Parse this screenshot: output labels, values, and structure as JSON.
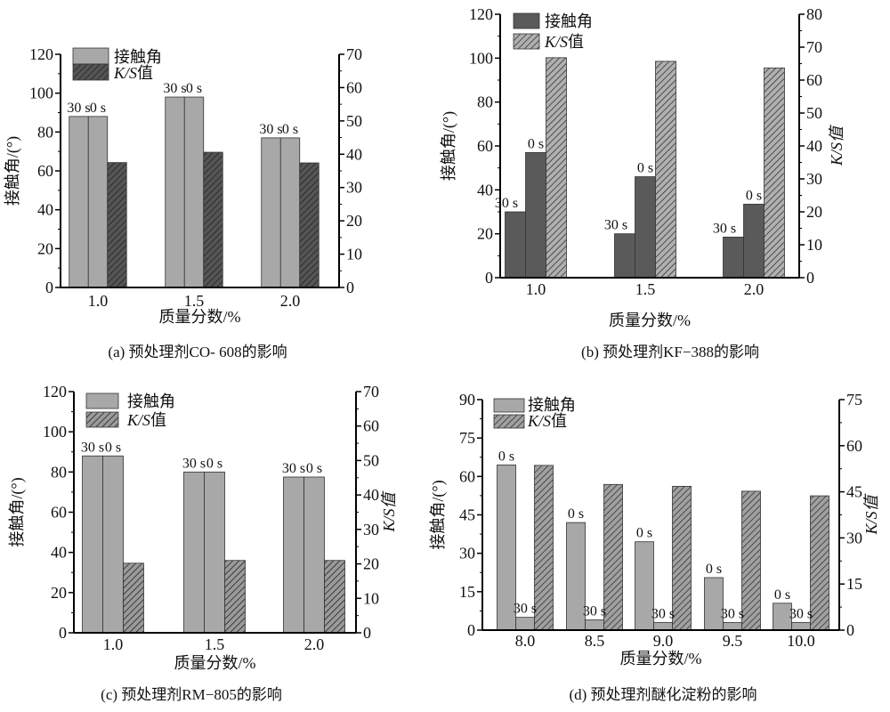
{
  "chart_data": [
    {
      "type": "bar",
      "caption": "(a) 预处理剂CO- 608的影响",
      "xlabel": "质量分数/%",
      "ylabel": "接触角/(°)",
      "ylim": [
        0,
        120
      ],
      "ystep": 20,
      "y2lim": [
        0,
        70
      ],
      "y2step": 10,
      "categories": [
        "1.0",
        "1.5",
        "2.0"
      ],
      "legend": [
        "接触角",
        "K/S值"
      ],
      "colors": {
        "contact": "#a8a8a8",
        "ks_fill": "#555555",
        "ks_hatch": "#222222"
      },
      "series": [
        {
          "name": "接触角",
          "bar_label": "30 s",
          "axis": "left",
          "values": [
            88,
            98,
            77
          ]
        },
        {
          "name": "接触角",
          "bar_label": "0 s",
          "axis": "left",
          "values": [
            88,
            98,
            77
          ]
        },
        {
          "name": "K/S值",
          "axis": "right",
          "values": [
            37.5,
            40.6,
            37.4
          ]
        }
      ]
    },
    {
      "type": "bar",
      "caption": "(b) 预处理剂KF−388的影响",
      "xlabel": "质量分数/%",
      "ylabel": "接触角/(°)",
      "y2label": "K/S值",
      "ylim": [
        0,
        120
      ],
      "ystep": 20,
      "y2lim": [
        0,
        80
      ],
      "y2step": 10,
      "categories": [
        "1.0",
        "1.5",
        "2.0"
      ],
      "legend": [
        "接触角",
        "K/S值"
      ],
      "colors": {
        "contact": "#5a5a5a",
        "ks_fill": "#b0b0b0",
        "ks_hatch": "#333333"
      },
      "series": [
        {
          "name": "接触角",
          "bar_label": "30 s",
          "axis": "left",
          "values": [
            30,
            20,
            18.5
          ]
        },
        {
          "name": "接触角",
          "bar_label": "0 s",
          "axis": "left",
          "values": [
            57,
            46,
            33.5
          ]
        },
        {
          "name": "K/S值",
          "axis": "right",
          "values": [
            66.8,
            65.7,
            63.7
          ]
        }
      ]
    },
    {
      "type": "bar",
      "caption": "(c) 预处理剂RM−805的影响",
      "xlabel": "质量分数/%",
      "ylabel": "接触角/(°)",
      "y2label": "K/S值",
      "ylim": [
        0,
        120
      ],
      "ystep": 20,
      "y2lim": [
        0,
        70
      ],
      "y2step": 10,
      "categories": [
        "1.0",
        "1.5",
        "2.0"
      ],
      "legend": [
        "接触角",
        "K/S值"
      ],
      "colors": {
        "contact": "#a8a8a8",
        "ks_fill": "#9a9a9a",
        "ks_hatch": "#222222"
      },
      "series": [
        {
          "name": "接触角",
          "bar_label": "30 s",
          "axis": "left",
          "values": [
            88,
            80,
            77.5
          ]
        },
        {
          "name": "接触角",
          "bar_label": "0 s",
          "axis": "left",
          "values": [
            88,
            80,
            77.5
          ]
        },
        {
          "name": "K/S值",
          "axis": "right",
          "values": [
            20.2,
            21,
            21
          ]
        }
      ]
    },
    {
      "type": "bar",
      "caption": "(d) 预处理剂醚化淀粉的影响",
      "xlabel": "质量分数/%",
      "ylabel": "接触角/(°)",
      "y2label": "K/S值",
      "ylim": [
        0,
        90
      ],
      "ystep": 15,
      "y2lim": [
        0,
        75
      ],
      "y2step": 15,
      "categories": [
        "8.0",
        "8.5",
        "9.0",
        "9.5",
        "10.0"
      ],
      "legend": [
        "接触角",
        "K/S值"
      ],
      "colors": {
        "contact": "#a8a8a8",
        "ks_fill": "#a0a0a0",
        "ks_hatch": "#333333"
      },
      "series": [
        {
          "name": "接触角",
          "bar_label": "0 s",
          "axis": "left",
          "values": [
            64.5,
            42,
            34.5,
            20.5,
            10.5
          ]
        },
        {
          "name": "接触角",
          "bar_label": "30 s",
          "axis": "left",
          "values": [
            5,
            4,
            3,
            3,
            3
          ]
        },
        {
          "name": "K/S值",
          "axis": "right",
          "values": [
            53.6,
            47.4,
            46.8,
            45.2,
            43.7
          ]
        }
      ]
    }
  ]
}
